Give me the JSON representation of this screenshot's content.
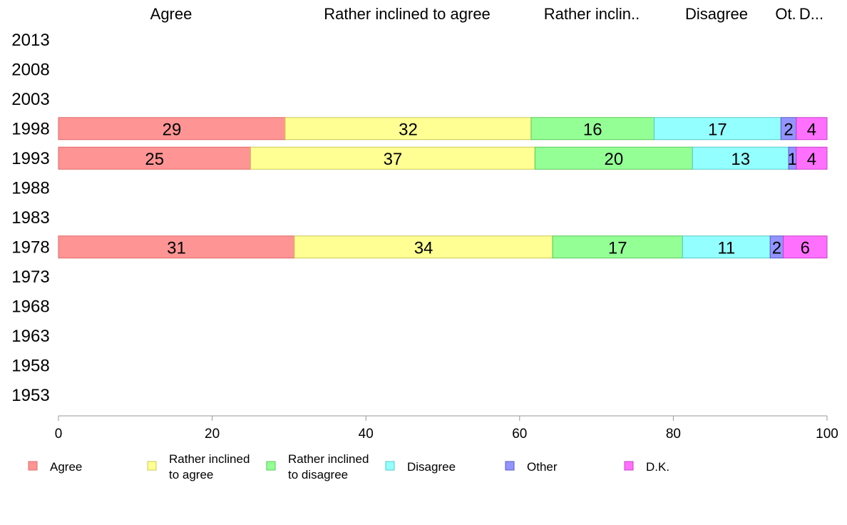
{
  "chart_data": {
    "type": "bar",
    "orientation": "horizontal",
    "stacked": true,
    "column_headers": [
      "Agree",
      "Rather inclined to agree",
      "Rather inclin..",
      "Disagree",
      "Ot.",
      "D..."
    ],
    "years": [
      "2013",
      "2008",
      "2003",
      "1998",
      "1993",
      "1988",
      "1983",
      "1978",
      "1973",
      "1968",
      "1963",
      "1958",
      "1953"
    ],
    "x_ticks": [
      "0",
      "20",
      "40",
      "60",
      "80",
      "100"
    ],
    "xlim": [
      0,
      100
    ],
    "grid": false,
    "legend_position": "bottom",
    "series": [
      {
        "name": "Agree",
        "legend_lines": [
          "Agree"
        ],
        "color": "#ff9494",
        "stroke": "#e06a6a"
      },
      {
        "name": "Rather inclined to agree",
        "legend_lines": [
          "Rather inclined",
          "to agree"
        ],
        "color": "#ffff94",
        "stroke": "#c8c85a"
      },
      {
        "name": "Rather inclined to disagree",
        "legend_lines": [
          "Rather inclined",
          "to disagree"
        ],
        "color": "#94ff94",
        "stroke": "#5ac85a"
      },
      {
        "name": "Disagree",
        "legend_lines": [
          "Disagree"
        ],
        "color": "#94ffff",
        "stroke": "#5ac8c8"
      },
      {
        "name": "Other",
        "legend_lines": [
          "Other"
        ],
        "color": "#9494ff",
        "stroke": "#5a5ac8"
      },
      {
        "name": "D.K.",
        "legend_lines": [
          "D.K."
        ],
        "color": "#ff70ff",
        "stroke": "#c840c8"
      }
    ],
    "data": [
      {
        "year": "1998",
        "values": [
          29.5,
          32,
          16,
          16.5,
          2,
          4
        ],
        "labels": [
          "29",
          "32",
          "16",
          "17",
          "2",
          "4"
        ]
      },
      {
        "year": "1993",
        "values": [
          25,
          37,
          20.5,
          12.5,
          1,
          4
        ],
        "labels": [
          "25",
          "37",
          "20",
          "13",
          "1",
          "4"
        ]
      },
      {
        "year": "1978",
        "values": [
          30.7,
          33.6,
          16.9,
          11.4,
          1.7,
          5.7
        ],
        "labels": [
          "31",
          "34",
          "17",
          "11",
          "2",
          "6"
        ]
      }
    ]
  }
}
